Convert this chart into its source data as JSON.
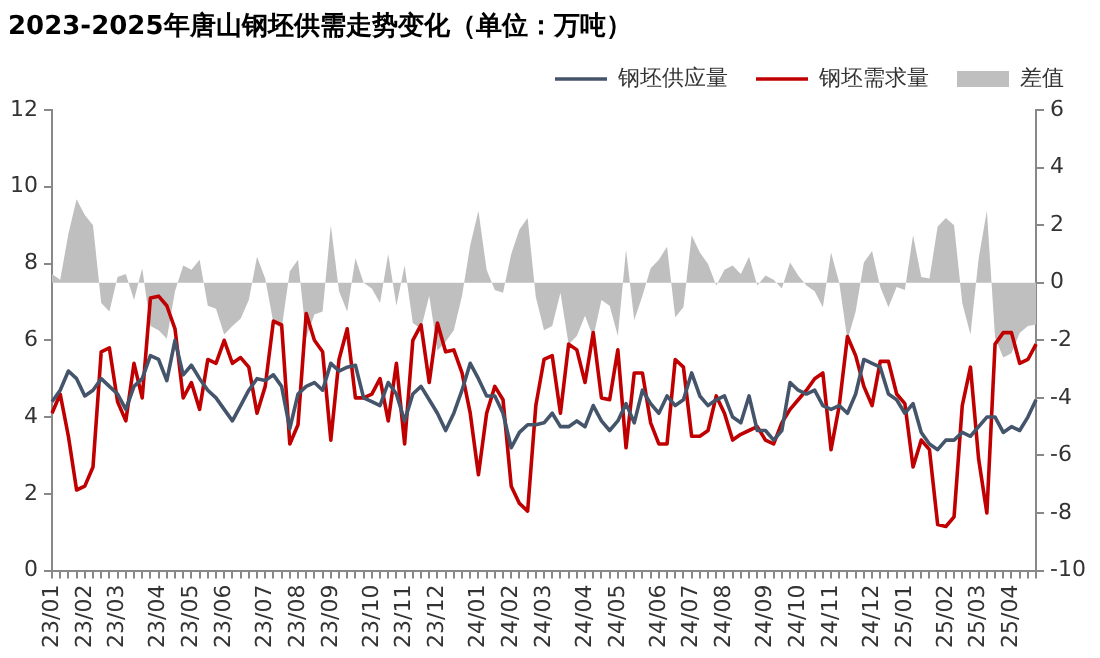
{
  "chart_data": {
    "type": "line",
    "title": "2023-2025年唐山钢坯供需走势变化（单位：万吨）",
    "categories": [
      "23/01",
      null,
      null,
      null,
      "23/02",
      null,
      null,
      null,
      "23/03",
      null,
      null,
      null,
      null,
      "23/04",
      null,
      null,
      null,
      "23/05",
      null,
      null,
      null,
      "23/06",
      null,
      null,
      null,
      null,
      "23/07",
      null,
      null,
      null,
      "23/08",
      null,
      null,
      null,
      "23/09",
      null,
      null,
      null,
      null,
      "23/10",
      null,
      null,
      null,
      "23/11",
      null,
      null,
      null,
      "23/12",
      null,
      null,
      null,
      null,
      "24/01",
      null,
      null,
      null,
      "24/02",
      null,
      null,
      null,
      "24/03",
      null,
      null,
      null,
      null,
      "24/04",
      null,
      null,
      null,
      "24/05",
      null,
      null,
      null,
      null,
      "24/06",
      null,
      null,
      null,
      "24/07",
      null,
      null,
      null,
      "24/08",
      null,
      null,
      null,
      null,
      "24/09",
      null,
      null,
      null,
      "24/10",
      null,
      null,
      null,
      "24/11",
      null,
      null,
      null,
      null,
      "24/12",
      null,
      null,
      null,
      "25/01",
      null,
      null,
      null,
      null,
      "25/02",
      null,
      null,
      null,
      "25/03",
      null,
      null,
      null,
      "25/04",
      null,
      null,
      null
    ],
    "series": [
      {
        "name": "差值",
        "type": "area",
        "axis": "y2",
        "color": "#bfbfbf",
        "values": [
          0.3,
          0.1,
          1.7,
          2.9,
          2.35,
          2.0,
          -0.7,
          -1.0,
          0.2,
          0.3,
          -0.6,
          0.5,
          -1.5,
          -1.65,
          -1.95,
          -0.3,
          0.6,
          0.45,
          0.8,
          -0.8,
          -0.9,
          -1.8,
          -1.5,
          -1.25,
          -0.6,
          0.9,
          0.15,
          -1.4,
          -1.6,
          0.4,
          0.8,
          -1.9,
          -1.1,
          -1.0,
          2.0,
          -0.3,
          -1.0,
          0.85,
          0,
          -0.2,
          -0.7,
          1.0,
          -0.8,
          0.6,
          -1.4,
          -1.6,
          -0.45,
          -2.35,
          -2.05,
          -1.65,
          -0.45,
          1.3,
          2.5,
          0.45,
          -0.25,
          -0.35,
          1.0,
          1.85,
          2.25,
          -0.5,
          -1.65,
          -1.5,
          -0.35,
          -2.15,
          -1.85,
          -1.15,
          -1.9,
          -0.6,
          -0.8,
          -1.85,
          1.15,
          -1.3,
          -0.45,
          0.5,
          0.8,
          1.25,
          -1.2,
          -0.85,
          1.65,
          1.05,
          0.65,
          -0.1,
          0.45,
          0.6,
          0.3,
          0.9,
          -0.1,
          0.25,
          0.1,
          -0.2,
          0.7,
          0.25,
          -0.1,
          -0.3,
          -0.85,
          1.05,
          0,
          -2.0,
          -1.0,
          0.7,
          1.1,
          -0.15,
          -0.85,
          -0.15,
          -0.25,
          1.65,
          0.2,
          0.15,
          1.95,
          2.25,
          2.0,
          -0.7,
          -1.8,
          0.85,
          2.5,
          -1.9,
          -2.6,
          -2.45,
          -1.75,
          -1.5,
          -1.45
        ]
      },
      {
        "name": "钢坯供应量",
        "type": "line",
        "color": "#44546a",
        "values": [
          4.4,
          4.7,
          5.2,
          5.0,
          4.55,
          4.7,
          5.0,
          4.8,
          4.6,
          4.2,
          4.8,
          5.0,
          5.6,
          5.5,
          4.95,
          6.0,
          5.1,
          5.35,
          5.0,
          4.7,
          4.5,
          4.2,
          3.9,
          4.3,
          4.7,
          5.0,
          4.95,
          5.1,
          4.8,
          3.7,
          4.6,
          4.8,
          4.9,
          4.7,
          5.4,
          5.2,
          5.3,
          5.35,
          4.5,
          4.4,
          4.3,
          4.9,
          4.6,
          3.9,
          4.6,
          4.8,
          4.45,
          4.1,
          3.65,
          4.1,
          4.7,
          5.4,
          5.0,
          4.55,
          4.55,
          4.1,
          3.2,
          3.6,
          3.8,
          3.8,
          3.85,
          4.1,
          3.75,
          3.75,
          3.9,
          3.75,
          4.3,
          3.9,
          3.65,
          3.9,
          4.35,
          3.85,
          4.7,
          4.35,
          4.1,
          4.55,
          4.3,
          4.45,
          5.15,
          4.55,
          4.3,
          4.45,
          4.55,
          4.0,
          3.85,
          4.55,
          3.65,
          3.65,
          3.4,
          3.65,
          4.9,
          4.7,
          4.6,
          4.7,
          4.3,
          4.2,
          4.3,
          4.1,
          4.6,
          5.5,
          5.4,
          5.3,
          4.6,
          4.45,
          4.1,
          4.35,
          3.6,
          3.3,
          3.15,
          3.4,
          3.4,
          3.6,
          3.5,
          3.75,
          4.0,
          4.0,
          3.6,
          3.75,
          3.65,
          4.0,
          4.45
        ]
      },
      {
        "name": "钢坯需求量",
        "type": "line",
        "color": "#c00000",
        "values": [
          4.1,
          4.6,
          3.5,
          2.1,
          2.2,
          2.7,
          5.7,
          5.8,
          4.4,
          3.9,
          5.4,
          4.5,
          7.1,
          7.15,
          6.9,
          6.3,
          4.5,
          4.9,
          4.2,
          5.5,
          5.4,
          6.0,
          5.4,
          5.55,
          5.3,
          4.1,
          4.8,
          6.5,
          6.4,
          3.3,
          3.8,
          6.7,
          6.0,
          5.7,
          3.4,
          5.5,
          6.3,
          4.5,
          4.5,
          4.6,
          5.0,
          3.9,
          5.4,
          3.3,
          6.0,
          6.4,
          4.9,
          6.45,
          5.7,
          5.75,
          5.15,
          4.1,
          2.5,
          4.1,
          4.8,
          4.45,
          2.2,
          1.75,
          1.55,
          4.3,
          5.5,
          5.6,
          4.1,
          5.9,
          5.75,
          4.9,
          6.2,
          4.5,
          4.45,
          5.75,
          3.2,
          5.15,
          5.15,
          3.85,
          3.3,
          3.3,
          5.5,
          5.3,
          3.5,
          3.5,
          3.65,
          4.55,
          4.1,
          3.4,
          3.55,
          3.65,
          3.75,
          3.4,
          3.3,
          3.85,
          4.2,
          4.45,
          4.7,
          5.0,
          5.15,
          3.15,
          4.3,
          6.1,
          5.6,
          4.8,
          4.3,
          5.45,
          5.45,
          4.6,
          4.35,
          2.7,
          3.4,
          3.15,
          1.2,
          1.15,
          1.4,
          4.3,
          5.3,
          2.9,
          1.5,
          5.9,
          6.2,
          6.2,
          5.4,
          5.5,
          5.9
        ]
      }
    ],
    "ylim": [
      0,
      12
    ],
    "yticks": [
      0,
      2,
      4,
      6,
      8,
      10,
      12
    ],
    "y2lim": [
      -10,
      6
    ],
    "y2ticks": [
      -10,
      -8,
      -6,
      -4,
      -2,
      0,
      2,
      4,
      6
    ],
    "grid": false,
    "legend": "top right",
    "marker": "none",
    "line_style": "solid"
  }
}
